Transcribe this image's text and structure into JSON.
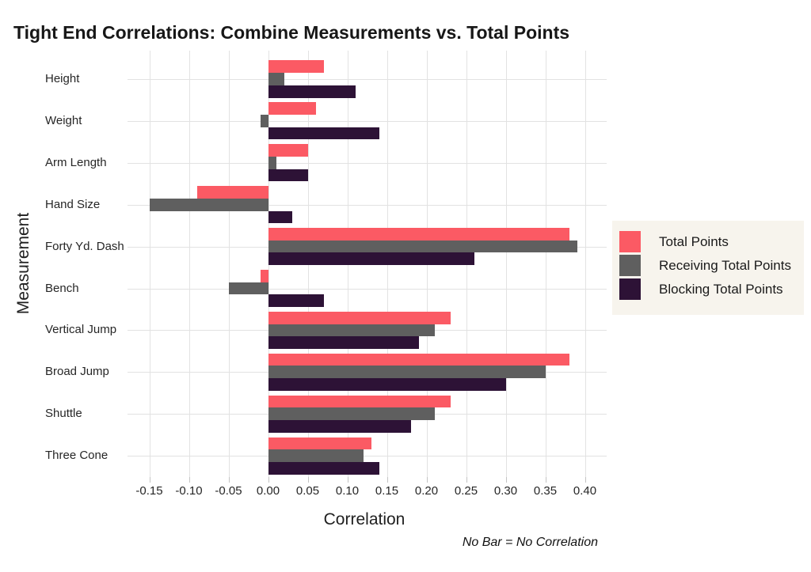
{
  "title": "Tight End Correlations: Combine Measurements vs. Total Points",
  "caption": "No Bar = No Correlation",
  "colors": {
    "background": "#FFFFFF",
    "gridline": "#E2E2E2",
    "tick_mark": "#C4C4C4",
    "legend_background": "#F7F4ED",
    "series_red": "#FB5A64",
    "series_gray": "#5F5F5F",
    "series_dark_purple": "#2D1236"
  },
  "chart_data": {
    "type": "bar",
    "orientation": "horizontal",
    "title": "Tight End Correlations: Combine Measurements vs. Total Points",
    "xlabel": "Correlation",
    "ylabel": "Measurement",
    "categories": [
      "Height",
      "Weight",
      "Arm Length",
      "Hand Size",
      "Forty Yd. Dash",
      "Bench",
      "Vertical Jump",
      "Broad Jump",
      "Shuttle",
      "Three Cone"
    ],
    "series": [
      {
        "name": "Total Points",
        "color": "#FB5A64",
        "values": [
          0.07,
          0.06,
          0.05,
          -0.09,
          0.38,
          -0.01,
          0.23,
          0.38,
          0.23,
          0.13
        ]
      },
      {
        "name": "Receiving Total Points",
        "color": "#5F5F5F",
        "values": [
          0.02,
          -0.01,
          0.01,
          -0.15,
          0.39,
          -0.05,
          0.21,
          0.35,
          0.21,
          0.12
        ]
      },
      {
        "name": "Blocking Total Points",
        "color": "#2D1236",
        "values": [
          0.11,
          0.14,
          0.05,
          0.03,
          0.26,
          0.07,
          0.19,
          0.3,
          0.18,
          0.14
        ]
      }
    ],
    "x_ticks": [
      -0.15,
      -0.1,
      -0.05,
      0.0,
      0.05,
      0.1,
      0.15,
      0.2,
      0.25,
      0.3,
      0.35,
      0.4
    ],
    "xlim": [
      -0.1775,
      0.4275
    ],
    "grid": true,
    "legend_position": "right",
    "annotation": "No Bar = No Correlation"
  }
}
